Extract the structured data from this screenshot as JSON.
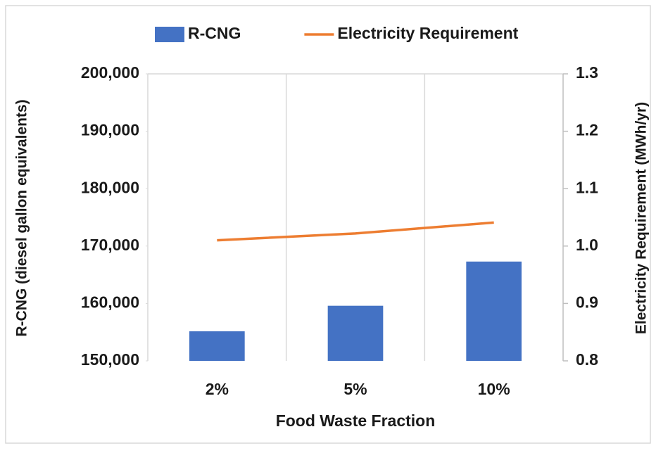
{
  "chart_data": {
    "type": "bar_line",
    "xlabel": "Food Waste Fraction",
    "ylabel": "R-CNG (diesel gallon equivalents)",
    "y2label": "Electricity Requirement (MWh/yr)",
    "categories": [
      "2%",
      "5%",
      "10%"
    ],
    "series": [
      {
        "name": "R-CNG",
        "type": "bar",
        "color": "#4472c4",
        "values": [
          155150,
          159600,
          167300
        ]
      },
      {
        "name": "Electricity Requirement",
        "type": "line",
        "color": "#ed7d31",
        "axis": "y2",
        "values": [
          1.01,
          1.022,
          1.041
        ]
      }
    ],
    "ylim": [
      150000,
      200000
    ],
    "yticks": [
      {
        "value": 150000,
        "label": "150,000"
      },
      {
        "value": 160000,
        "label": "160,000"
      },
      {
        "value": 170000,
        "label": "170,000"
      },
      {
        "value": 180000,
        "label": "180,000"
      },
      {
        "value": 190000,
        "label": "190,000"
      },
      {
        "value": 200000,
        "label": "200,000"
      }
    ],
    "y2lim": [
      0.8,
      1.3
    ],
    "y2ticks": [
      0.8,
      0.9,
      {
        "value": 1.0,
        "label": "1.0"
      },
      1.1,
      1.2,
      1.3
    ],
    "grid": "x",
    "legend": "top"
  }
}
